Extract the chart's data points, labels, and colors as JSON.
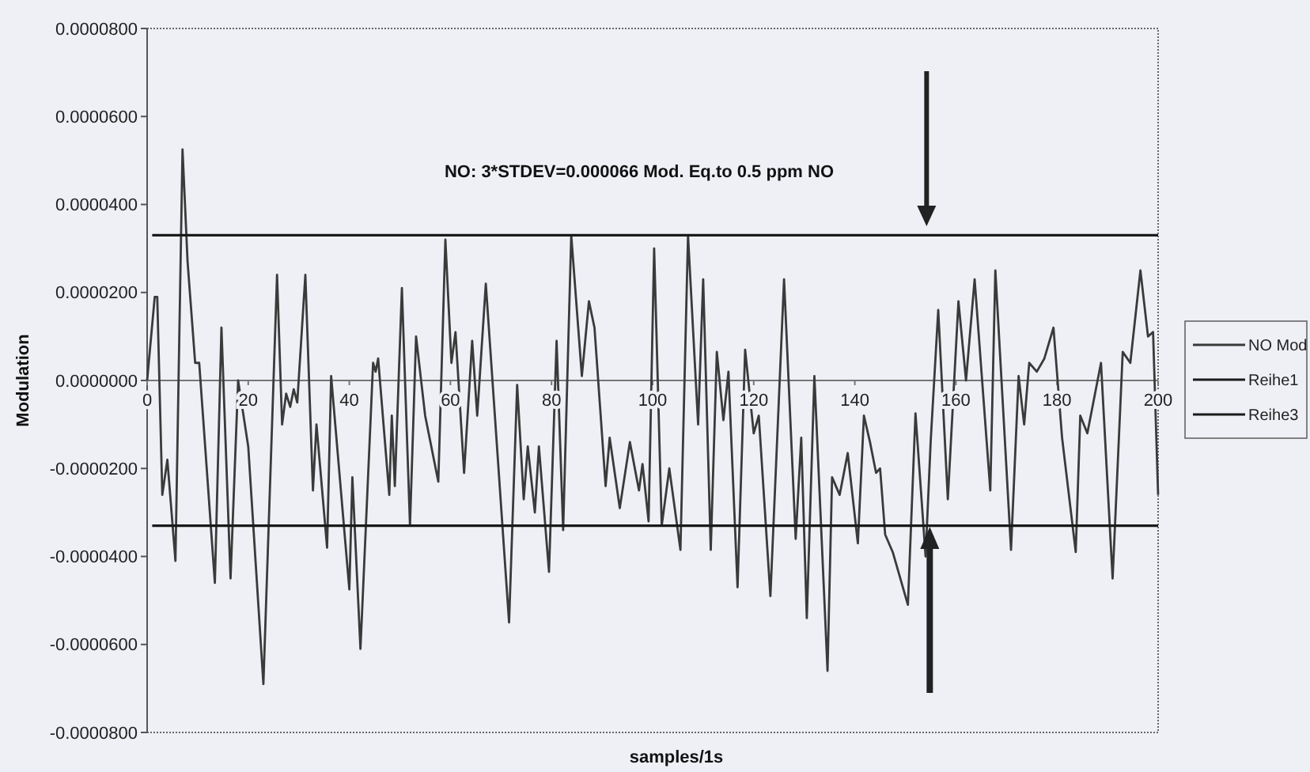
{
  "chart_data": {
    "type": "line",
    "annotations": [
      "NO: 3*STDEV=0.000066 Mod. Eq.to 0.5 ppm NO"
    ],
    "xlabel": "samples/1s",
    "ylabel": "Modulation",
    "xlim": [
      0,
      200
    ],
    "xticks": [
      0,
      20,
      40,
      60,
      80,
      100,
      120,
      140,
      160,
      180,
      200
    ],
    "ylim": [
      -8e-05,
      8e-05
    ],
    "yticks": [
      {
        "value": -8e-05,
        "label": "-0.0000800"
      },
      {
        "value": -6e-05,
        "label": "-0.0000600"
      },
      {
        "value": -4e-05,
        "label": "-0.0000400"
      },
      {
        "value": -2e-05,
        "label": "-0.0000200"
      },
      {
        "value": 0,
        "label": "0.0000000"
      },
      {
        "value": 2e-05,
        "label": "0.0000200"
      },
      {
        "value": 4e-05,
        "label": "0.0000400"
      },
      {
        "value": 6e-05,
        "label": "0.0000600"
      },
      {
        "value": 8e-05,
        "label": "0.0000800"
      }
    ],
    "legend": "right",
    "line_style": "solid",
    "series": [
      {
        "name": "NO Mod",
        "color": "#3a3a3a",
        "x": [
          0,
          1.5,
          2,
          3,
          4,
          5.6,
          7,
          8,
          9.5,
          10.3,
          13.4,
          14.7,
          16.5,
          18,
          20,
          23,
          25.7,
          26.7,
          27.5,
          28.3,
          29,
          29.7,
          31.3,
          32.8,
          33.5,
          35.6,
          36.4,
          40,
          40.6,
          42.2,
          44.7,
          45.2,
          45.7,
          47.9,
          48.4,
          49,
          50.4,
          52,
          53.2,
          55,
          57.6,
          59,
          60.2,
          61,
          62.7,
          64.3,
          65.3,
          67,
          71.6,
          73.2,
          74.5,
          75.3,
          76.7,
          77.5,
          79.5,
          81,
          82.3,
          83.9,
          86,
          87.4,
          88.5,
          90.7,
          91.5,
          93.5,
          95.5,
          97.3,
          98,
          99.2,
          100.3,
          101.8,
          103.3,
          105.5,
          107,
          109,
          110,
          111.5,
          112.7,
          114,
          115,
          116.8,
          118.3,
          120,
          121,
          123.3,
          126,
          128.3,
          129.4,
          130.5,
          132,
          134.6,
          135.5,
          137,
          138.6,
          140.6,
          141.8,
          143,
          144.2,
          145,
          146,
          147.5,
          150.5,
          152,
          154,
          155,
          156.5,
          158.4,
          160.5,
          162,
          163.7,
          166.8,
          167.8,
          170.9,
          172.4,
          173.5,
          174.5,
          176,
          177.5,
          179.3,
          181,
          183.7,
          184.6,
          186,
          188.7,
          191,
          193,
          194.5,
          196.5,
          198,
          199,
          200
        ],
        "values": [
          0,
          1.9e-05,
          1.9e-05,
          -2.6e-05,
          -1.8e-05,
          -4.1e-05,
          5.25e-05,
          2.7e-05,
          4e-06,
          4e-06,
          -4.6e-05,
          1.2e-05,
          -4.5e-05,
          0,
          -1.5e-05,
          -6.9e-05,
          2.4e-05,
          -1e-05,
          -3e-06,
          -6e-06,
          -2e-06,
          -5e-06,
          2.4e-05,
          -2.5e-05,
          -1e-05,
          -3.8e-05,
          1e-06,
          -4.75e-05,
          -2.2e-05,
          -6.1e-05,
          4e-06,
          2e-06,
          5e-06,
          -2.6e-05,
          -8e-06,
          -2.4e-05,
          2.1e-05,
          -3.3e-05,
          1e-05,
          -8e-06,
          -2.3e-05,
          3.2e-05,
          4e-06,
          1.1e-05,
          -2.1e-05,
          9e-06,
          -8e-06,
          2.2e-05,
          -5.5e-05,
          -1e-06,
          -2.7e-05,
          -1.5e-05,
          -3e-05,
          -1.5e-05,
          -4.35e-05,
          9e-06,
          -3.4e-05,
          3.3e-05,
          1e-06,
          1.8e-05,
          1.2e-05,
          -2.4e-05,
          -1.3e-05,
          -2.9e-05,
          -1.4e-05,
          -2.5e-05,
          -1.9e-05,
          -3.2e-05,
          3e-05,
          -3.3e-05,
          -2e-05,
          -3.85e-05,
          3.3e-05,
          -1e-05,
          2.3e-05,
          -3.85e-05,
          6.5e-06,
          -9e-06,
          2e-06,
          -4.7e-05,
          7e-06,
          -1.2e-05,
          -8e-06,
          -4.9e-05,
          2.3e-05,
          -3.6e-05,
          -1.3e-05,
          -5.4e-05,
          1e-06,
          -6.6e-05,
          -2.2e-05,
          -2.6e-05,
          -1.65e-05,
          -3.7e-05,
          -8e-06,
          -1.4e-05,
          -2.1e-05,
          -2e-05,
          -3.5e-05,
          -3.9e-05,
          -5.1e-05,
          -7.5e-06,
          -4e-05,
          -1.4e-05,
          1.6e-05,
          -2.7e-05,
          1.8e-05,
          0,
          2.3e-05,
          -2.5e-05,
          2.5e-05,
          -3.85e-05,
          1e-06,
          -1e-05,
          4e-06,
          2e-06,
          5e-06,
          1.2e-05,
          -1.3e-05,
          -3.9e-05,
          -8e-06,
          -1.2e-05,
          4e-06,
          -4.5e-05,
          6.5e-06,
          4e-06,
          2.5e-05,
          1e-05,
          1.1e-05,
          -2.6e-05
        ]
      },
      {
        "name": "Reihe1",
        "color": "#1a1a1a",
        "x": [
          1,
          200
        ],
        "values": [
          3.3e-05,
          3.3e-05
        ]
      },
      {
        "name": "Reihe3",
        "color": "#1a1a1a",
        "x": [
          1,
          200
        ],
        "values": [
          -3.3e-05,
          -3.3e-05
        ]
      }
    ]
  }
}
